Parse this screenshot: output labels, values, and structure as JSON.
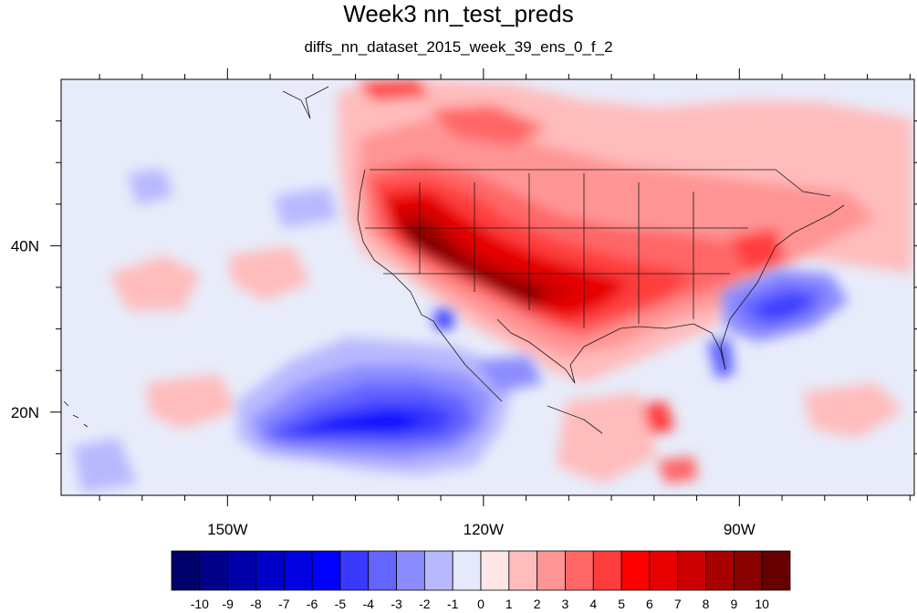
{
  "title": "Week3 nn_test_preds",
  "subtitle": "diffs_nn_dataset_2015_week_39_ens_0_f_2",
  "map": {
    "lon_range": [
      -169.5,
      -69.5
    ],
    "lat_range": [
      10,
      60
    ],
    "lon_ticks": [
      {
        "value": -150,
        "label": "150W"
      },
      {
        "value": -120,
        "label": "120W"
      },
      {
        "value": -90,
        "label": "90W"
      }
    ],
    "lat_ticks": [
      {
        "value": 40,
        "label": "40N"
      },
      {
        "value": 20,
        "label": "20N"
      }
    ],
    "colors": {
      "frame": "#000000",
      "ocean_background": "#e8ecfa",
      "coast": "#1a1a1a"
    }
  },
  "colorbar": {
    "levels": [
      "-10",
      "-9",
      "-8",
      "-7",
      "-6",
      "-5",
      "-4",
      "-3",
      "-2",
      "-1",
      "0",
      "1",
      "2",
      "3",
      "4",
      "5",
      "6",
      "7",
      "8",
      "9",
      "10"
    ],
    "colors": [
      "#00006a",
      "#000088",
      "#0000a8",
      "#0000c8",
      "#0000e0",
      "#0000ff",
      "#3a3aff",
      "#6464ff",
      "#8c8cff",
      "#b8b8ff",
      "#e6e8fb",
      "#ffe6e6",
      "#ffbcbc",
      "#ff9494",
      "#ff6666",
      "#ff3c3c",
      "#ff0000",
      "#e60000",
      "#cc0000",
      "#a80000",
      "#880000",
      "#660000"
    ]
  }
}
